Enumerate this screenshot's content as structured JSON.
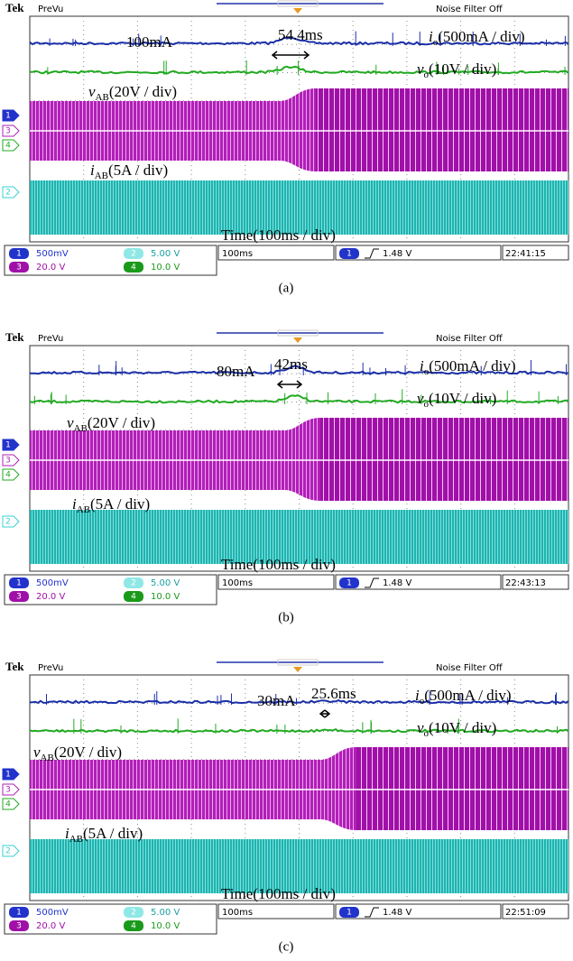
{
  "panels": [
    {
      "brand": "Tek",
      "mode": "PreVu",
      "filter": "Noise Filter Off",
      "current_step": "100mA",
      "duration": "54.4ms",
      "io_label": {
        "symbol": "i",
        "sub": "o",
        "scale": "(500mA / div)"
      },
      "vo_label": {
        "symbol": "v",
        "sub": "o",
        "scale": "(10V / div)"
      },
      "vab_label": {
        "symbol": "v",
        "sub": "AB",
        "scale": "(20V / div)"
      },
      "iab_label": {
        "symbol": "i",
        "sub": "AB",
        "scale": "(5A / div)"
      },
      "time_label": "Time(100ms / div)",
      "channel_markers": [
        "1",
        "3",
        "4",
        "2"
      ],
      "status": {
        "ch1": {
          "num": "1",
          "scale": "500mV"
        },
        "ch2": {
          "num": "2",
          "scale": "5.00 V"
        },
        "ch3": {
          "num": "3",
          "scale": "20.0 V"
        },
        "ch4": {
          "num": "4",
          "scale": "10.0 V"
        },
        "timebase": "100ms",
        "trigger_channel": "1",
        "trigger_level": "1.48 V",
        "clock": "22:41:15"
      },
      "caption": "(a)"
    },
    {
      "brand": "Tek",
      "mode": "PreVu",
      "filter": "Noise Filter Off",
      "current_step": "80mA",
      "duration": "42ms",
      "io_label": {
        "symbol": "i",
        "sub": "o",
        "scale": "(500mA / div)"
      },
      "vo_label": {
        "symbol": "v",
        "sub": "o",
        "scale": "(10V / div)"
      },
      "vab_label": {
        "symbol": "v",
        "sub": "AB",
        "scale": "(20V / div)"
      },
      "iab_label": {
        "symbol": "i",
        "sub": "AB",
        "scale": "(5A / div)"
      },
      "time_label": "Time(100ms / div)",
      "channel_markers": [
        "1",
        "3",
        "4",
        "2"
      ],
      "status": {
        "ch1": {
          "num": "1",
          "scale": "500mV"
        },
        "ch2": {
          "num": "2",
          "scale": "5.00 V"
        },
        "ch3": {
          "num": "3",
          "scale": "20.0 V"
        },
        "ch4": {
          "num": "4",
          "scale": "10.0 V"
        },
        "timebase": "100ms",
        "trigger_channel": "1",
        "trigger_level": "1.48 V",
        "clock": "22:43:13"
      },
      "caption": "(b)"
    },
    {
      "brand": "Tek",
      "mode": "PreVu",
      "filter": "Noise Filter Off",
      "current_step": "30mA",
      "duration": "25.6ms",
      "io_label": {
        "symbol": "i",
        "sub": "o",
        "scale": "(500mA / div)"
      },
      "vo_label": {
        "symbol": "v",
        "sub": "o",
        "scale": "(10V / div)"
      },
      "vab_label": {
        "symbol": "v",
        "sub": "AB",
        "scale": "(20V / div)"
      },
      "iab_label": {
        "symbol": "i",
        "sub": "AB",
        "scale": "(5A / div)"
      },
      "time_label": "Time(100ms / div)",
      "channel_markers": [
        "1",
        "3",
        "4",
        "2"
      ],
      "status": {
        "ch1": {
          "num": "1",
          "scale": "500mV"
        },
        "ch2": {
          "num": "2",
          "scale": "5.00 V"
        },
        "ch3": {
          "num": "3",
          "scale": "20.0 V"
        },
        "ch4": {
          "num": "4",
          "scale": "10.0 V"
        },
        "timebase": "100ms",
        "trigger_channel": "1",
        "trigger_level": "1.48 V",
        "clock": "22:51:09"
      },
      "caption": "(c)"
    }
  ]
}
